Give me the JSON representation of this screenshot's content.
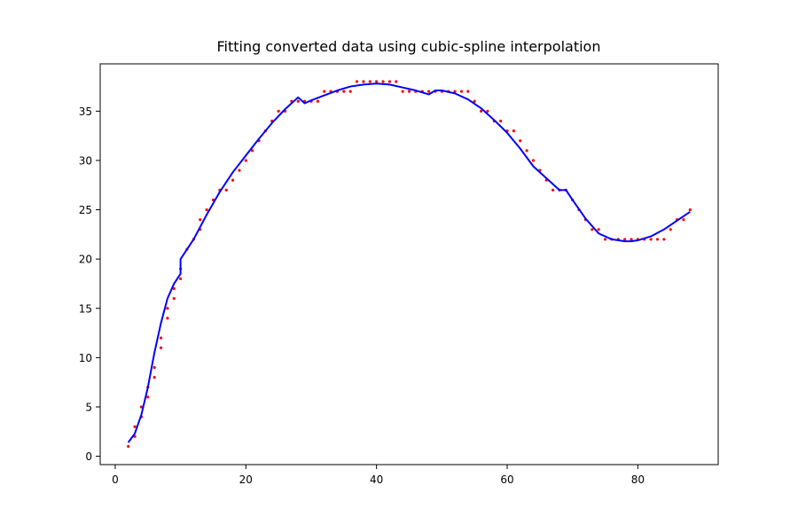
{
  "chart_data": {
    "type": "scatter",
    "title": "Fitting converted data using cubic-spline interpolation",
    "xlabel": "",
    "ylabel": "",
    "xlim": [
      -2.3,
      92.3
    ],
    "ylim": [
      -0.85,
      39.8
    ],
    "x_ticks": [
      0,
      20,
      40,
      60,
      80
    ],
    "y_ticks": [
      0,
      5,
      10,
      15,
      20,
      25,
      30,
      35
    ],
    "grid": false,
    "legend": "none",
    "series": [
      {
        "kind": "points",
        "color": "#ff0000",
        "x": [
          2,
          3,
          3,
          4,
          4,
          5,
          5,
          6,
          6,
          7,
          7,
          8,
          8,
          9,
          9,
          10,
          10,
          11,
          12,
          13,
          13,
          14,
          15,
          16,
          17,
          18,
          19,
          20,
          21,
          22,
          23,
          24,
          25,
          26,
          27,
          28,
          29,
          30,
          31,
          32,
          33,
          34,
          35,
          36,
          37,
          38,
          39,
          40,
          41,
          42,
          43,
          44,
          45,
          46,
          47,
          48,
          49,
          50,
          51,
          52,
          53,
          54,
          55,
          56,
          57,
          58,
          59,
          60,
          61,
          62,
          63,
          64,
          65,
          66,
          67,
          68,
          69,
          70,
          71,
          72,
          73,
          74,
          75,
          76,
          77,
          78,
          79,
          80,
          81,
          82,
          83,
          84,
          85,
          86,
          87,
          88
        ],
        "y": [
          1,
          2,
          3,
          4,
          5,
          6,
          7,
          8,
          9,
          11,
          12,
          14,
          15,
          16,
          17,
          18,
          19,
          21,
          22,
          23,
          24,
          25,
          26,
          27,
          27,
          28,
          29,
          30,
          31,
          32,
          33,
          34,
          35,
          35,
          36,
          36,
          36,
          36,
          36,
          37,
          37,
          37,
          37,
          37,
          38,
          38,
          38,
          38,
          38,
          38,
          38,
          37,
          37,
          37,
          37,
          37,
          37,
          37,
          37,
          37,
          37,
          37,
          36,
          35,
          35,
          34,
          34,
          33,
          33,
          32,
          31,
          30,
          29,
          28,
          27,
          27,
          27,
          26,
          25,
          24,
          23,
          23,
          22,
          22,
          22,
          22,
          22,
          22,
          22,
          22,
          22,
          22,
          23,
          24,
          24,
          25
        ]
      },
      {
        "kind": "line",
        "color": "#0000ff",
        "x": [
          2,
          3,
          4,
          5,
          6,
          7,
          8,
          9,
          10,
          10,
          12,
          14,
          16,
          18,
          20,
          22,
          24,
          26,
          28,
          29,
          30,
          32,
          34,
          36,
          38,
          40,
          42,
          44,
          46,
          48,
          49,
          50,
          52,
          54,
          56,
          58,
          60,
          62,
          64,
          66,
          68,
          69,
          70,
          72,
          74,
          76,
          78,
          79,
          80,
          82,
          84,
          86,
          88
        ],
        "y": [
          1.4,
          2.3,
          4.2,
          7.0,
          10.5,
          13.5,
          16.0,
          17.5,
          18.5,
          20.0,
          22.0,
          24.5,
          26.8,
          28.8,
          30.5,
          32.2,
          33.8,
          35.2,
          36.4,
          35.8,
          36.1,
          36.6,
          37.1,
          37.5,
          37.7,
          37.8,
          37.7,
          37.4,
          37.1,
          36.7,
          37.1,
          37.1,
          36.8,
          36.2,
          35.3,
          34.1,
          32.8,
          31.2,
          29.4,
          28.2,
          27.0,
          27.0,
          26.0,
          24.1,
          22.6,
          22.0,
          21.8,
          21.8,
          21.9,
          22.3,
          23.0,
          23.9,
          24.8
        ]
      }
    ]
  }
}
